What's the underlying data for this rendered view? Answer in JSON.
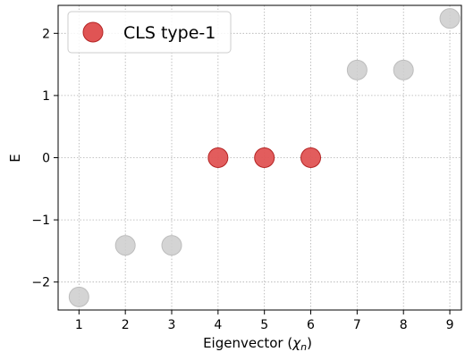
{
  "chart_data": {
    "type": "scatter",
    "title": "",
    "xlabel": "Eigenvector (",
    "xlabel_symbol": "χ",
    "xlabel_sub": "n",
    "xlabel_close": ")",
    "ylabel": "E",
    "xlim": [
      0.55,
      9.25
    ],
    "ylim": [
      -2.45,
      2.45
    ],
    "xticks": [
      1,
      2,
      3,
      4,
      5,
      6,
      7,
      8,
      9
    ],
    "xtick_labels": [
      "1",
      "2",
      "3",
      "4",
      "5",
      "6",
      "7",
      "8",
      "9"
    ],
    "yticks": [
      -2,
      -1,
      0,
      1,
      2
    ],
    "ytick_labels": [
      "−2",
      "−1",
      "0",
      "1",
      "2"
    ],
    "grid": true,
    "legend_position": "top-left",
    "series": [
      {
        "name": "",
        "color": "#cccccc",
        "edge_color": "#bdbdbd",
        "points": [
          {
            "x": 1,
            "y": -2.24
          },
          {
            "x": 2,
            "y": -1.41
          },
          {
            "x": 3,
            "y": -1.41
          },
          {
            "x": 7,
            "y": 1.41
          },
          {
            "x": 8,
            "y": 1.41
          },
          {
            "x": 9,
            "y": 2.24
          }
        ]
      },
      {
        "name": "CLS type-1",
        "color": "#e05454",
        "edge_color": "#b52525",
        "points": [
          {
            "x": 4,
            "y": 0
          },
          {
            "x": 5,
            "y": 0
          },
          {
            "x": 6,
            "y": 0
          }
        ]
      }
    ]
  }
}
